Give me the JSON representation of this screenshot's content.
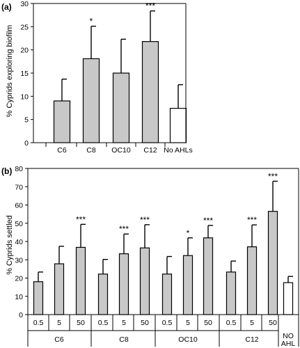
{
  "chart_data": [
    {
      "type": "bar",
      "panel_label": "(a)",
      "ylabel": "% Cyprids exploring biofilm",
      "ylim": [
        0,
        30
      ],
      "yticks": [
        "0",
        "5",
        "10",
        "15",
        "20",
        "25",
        "30"
      ],
      "categories": [
        "C6",
        "C8",
        "OC10",
        "C12",
        "No AHLs"
      ],
      "values": [
        9,
        18.1,
        15,
        21.8,
        7.4
      ],
      "errors": [
        4.7,
        7,
        7.3,
        6.6,
        5.1
      ],
      "significance": [
        "",
        "*",
        "",
        "***",
        ""
      ],
      "fills": [
        "#c8c8c8",
        "#c8c8c8",
        "#c8c8c8",
        "#c8c8c8",
        "#ffffff"
      ],
      "grid": false
    },
    {
      "type": "bar",
      "panel_label": "(b)",
      "ylabel": "% Cyprids settled",
      "ylim": [
        0,
        80
      ],
      "yticks": [
        "0",
        "10",
        "20",
        "30",
        "40",
        "50",
        "60",
        "70",
        "80"
      ],
      "categories": [
        "0.5",
        "5",
        "50",
        "0.5",
        "5",
        "50",
        "0.5",
        "5",
        "50",
        "0.5",
        "5",
        "50",
        ""
      ],
      "groups": [
        {
          "label": "C6",
          "count": 3
        },
        {
          "label": "C8",
          "count": 3
        },
        {
          "label": "OC10",
          "count": 3
        },
        {
          "label": "C12",
          "count": 3
        },
        {
          "label": "NO AHL",
          "count": 1
        }
      ],
      "values": [
        18,
        27.8,
        36.8,
        22.2,
        33.3,
        36.5,
        22.2,
        32.3,
        42,
        23.3,
        37.1,
        56.5,
        17.5
      ],
      "errors": [
        5.3,
        9.6,
        12.6,
        8,
        10.8,
        12.7,
        9.6,
        9.7,
        6.8,
        6,
        12,
        16.5,
        3.4
      ],
      "significance": [
        "",
        "",
        "***",
        "",
        "***",
        "***",
        "",
        "*",
        "***",
        "",
        "***",
        "***",
        ""
      ],
      "fills": [
        "#c8c8c8",
        "#c8c8c8",
        "#c8c8c8",
        "#c8c8c8",
        "#c8c8c8",
        "#c8c8c8",
        "#c8c8c8",
        "#c8c8c8",
        "#c8c8c8",
        "#c8c8c8",
        "#c8c8c8",
        "#c8c8c8",
        "#ffffff"
      ],
      "grid": false
    }
  ]
}
